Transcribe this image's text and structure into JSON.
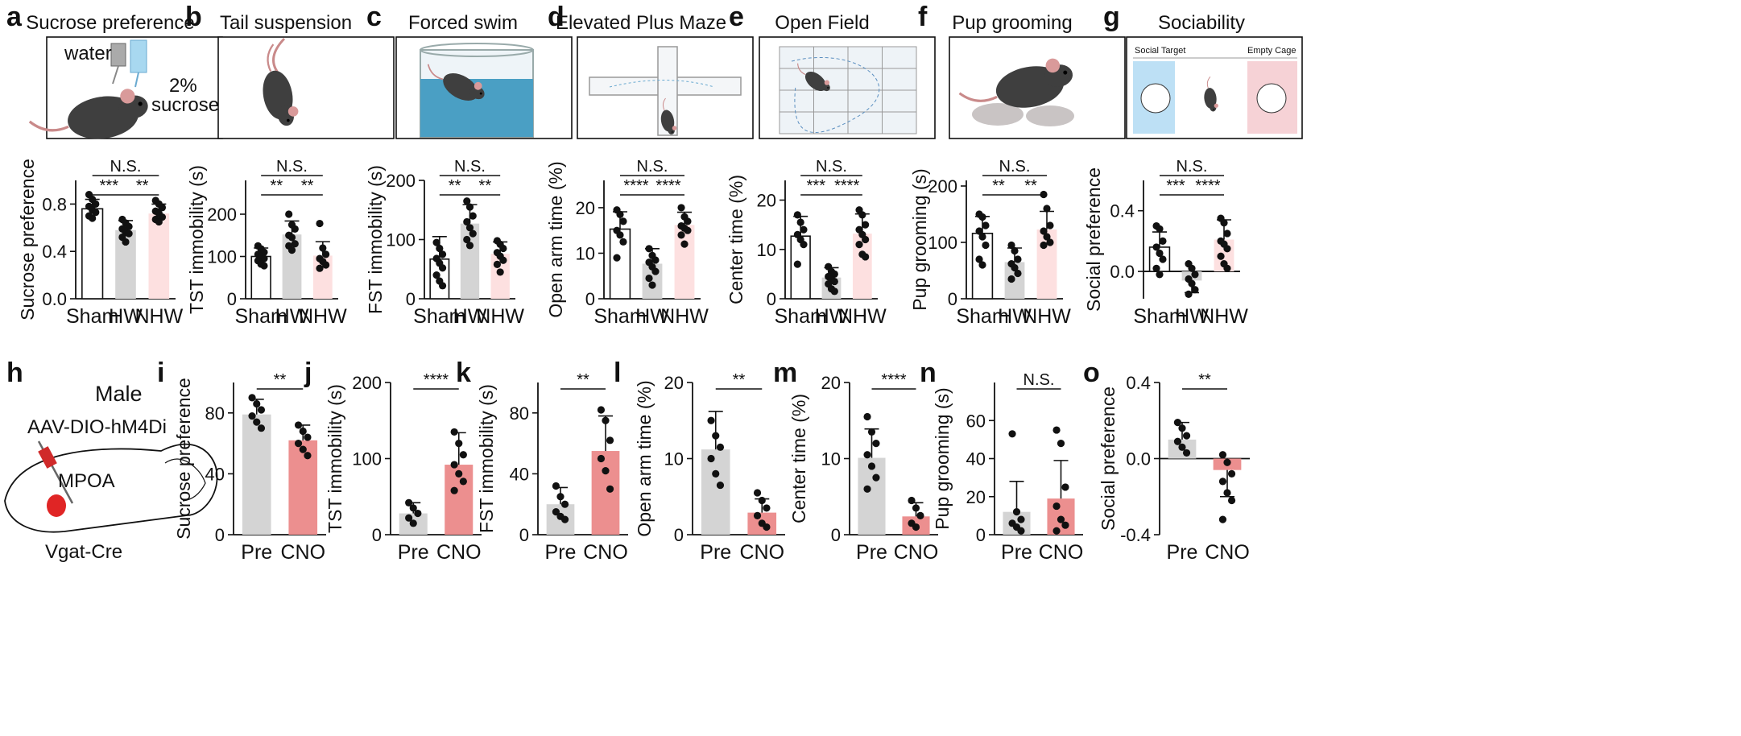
{
  "colors": {
    "sham": "#ffffff",
    "hw": "#d4d4d4",
    "nhw": "#fde0e0",
    "pre": "#d4d4d4",
    "cno": "#ec8f8f",
    "dot": "#111111",
    "mpoa": "#e02525",
    "virus": "#d02a2a",
    "water": "#a8d8f0"
  },
  "top_panels": [
    {
      "label": "a",
      "title": "Sucrose preference",
      "illustration": {
        "icon": "mouse-drinking-icon",
        "texts": [
          "water",
          "2%",
          "sucrose"
        ]
      }
    },
    {
      "label": "b",
      "title": "Tail suspension",
      "illustration": {
        "icon": "tail-suspension-mouse-icon",
        "texts": []
      }
    },
    {
      "label": "c",
      "title": "Forced swim",
      "illustration": {
        "icon": "forced-swim-cylinder-icon",
        "texts": []
      }
    },
    {
      "label": "d",
      "title": "Elevated Plus Maze",
      "illustration": {
        "icon": "plus-maze-icon",
        "texts": []
      }
    },
    {
      "label": "e",
      "title": "Open Field",
      "illustration": {
        "icon": "open-field-arena-icon",
        "texts": []
      }
    },
    {
      "label": "f",
      "title": "Pup grooming",
      "illustration": {
        "icon": "mouse-with-pups-icon",
        "texts": []
      }
    },
    {
      "label": "g",
      "title": "Sociability",
      "illustration": {
        "icon": "three-chamber-icon",
        "texts": [
          "Social Target",
          "Empty Cage"
        ]
      }
    }
  ],
  "panel_h": {
    "label": "h",
    "sex": "Male",
    "virus": "AAV-DIO-hM4Di",
    "region": "MPOA",
    "line": "Vgat-Cre",
    "icon": "brain-sagittal-icon"
  },
  "chart_data": [
    {
      "panel": "a",
      "type": "bar",
      "categories": [
        "Sham",
        "HW",
        "NHW"
      ],
      "values": [
        0.76,
        0.58,
        0.72
      ],
      "errors": [
        0.08,
        0.08,
        0.08
      ],
      "ylabel": "Sucrose preference",
      "ylim": [
        0,
        1.0
      ],
      "yticks": [
        "0.0",
        "0.4",
        "0.8"
      ],
      "ytick_values": [
        0,
        0.4,
        0.8
      ],
      "points": [
        [
          0.88,
          0.84,
          0.8,
          0.78,
          0.75,
          0.73,
          0.7,
          0.68
        ],
        [
          0.67,
          0.64,
          0.61,
          0.59,
          0.56,
          0.55,
          0.52,
          0.48
        ],
        [
          0.83,
          0.8,
          0.77,
          0.74,
          0.72,
          0.69,
          0.67,
          0.65
        ]
      ],
      "comparisons": [
        {
          "from": 0,
          "to": 2,
          "text": "N.S."
        },
        {
          "from": 0,
          "to": 1,
          "text": "***"
        },
        {
          "from": 1,
          "to": 2,
          "text": "**"
        }
      ]
    },
    {
      "panel": "b",
      "type": "bar",
      "categories": [
        "Sham",
        "HW",
        "NHW"
      ],
      "values": [
        100,
        152,
        102
      ],
      "errors": [
        20,
        32,
        33
      ],
      "ylabel": "TST immobility (s)",
      "ylim": [
        0,
        280
      ],
      "yticks": [
        "0",
        "100",
        "200"
      ],
      "ytick_values": [
        0,
        100,
        200
      ],
      "points": [
        [
          125,
          118,
          110,
          105,
          100,
          95,
          90,
          82,
          78
        ],
        [
          200,
          175,
          165,
          150,
          145,
          130,
          125,
          115
        ],
        [
          178,
          120,
          105,
          95,
          88,
          80,
          72
        ]
      ],
      "comparisons": [
        {
          "from": 0,
          "to": 2,
          "text": "N.S."
        },
        {
          "from": 0,
          "to": 1,
          "text": "**"
        },
        {
          "from": 1,
          "to": 2,
          "text": "**"
        }
      ]
    },
    {
      "panel": "c",
      "type": "bar",
      "categories": [
        "Sham",
        "HW",
        "NHW"
      ],
      "values": [
        67,
        127,
        76
      ],
      "errors": [
        38,
        32,
        20
      ],
      "ylabel": "FST immobility (s)",
      "ylim": [
        0,
        200
      ],
      "yticks": [
        "0",
        "100",
        "200"
      ],
      "ytick_values": [
        0,
        100,
        200
      ],
      "points": [
        [
          95,
          85,
          75,
          68,
          60,
          52,
          40,
          30,
          22
        ],
        [
          165,
          155,
          140,
          130,
          120,
          110,
          100,
          90
        ],
        [
          98,
          92,
          85,
          78,
          72,
          65,
          58,
          45
        ]
      ],
      "comparisons": [
        {
          "from": 0,
          "to": 2,
          "text": "N.S."
        },
        {
          "from": 0,
          "to": 1,
          "text": "**"
        },
        {
          "from": 1,
          "to": 2,
          "text": "**"
        }
      ]
    },
    {
      "panel": "d",
      "type": "bar",
      "categories": [
        "Sham",
        "HW",
        "NHW"
      ],
      "values": [
        15.3,
        7.7,
        16.2
      ],
      "errors": [
        3.8,
        3.3,
        2.8
      ],
      "ylabel": "Open arm time (%)",
      "ylim": [
        0,
        26
      ],
      "yticks": [
        "0",
        "10",
        "20"
      ],
      "ytick_values": [
        0,
        10,
        20
      ],
      "points": [
        [
          19.5,
          18.5,
          17.0,
          15.0,
          14.0,
          12.5,
          9.0
        ],
        [
          11.0,
          9.5,
          8.5,
          8.0,
          7.0,
          6.0,
          4.5,
          3.0
        ],
        [
          20.0,
          18.0,
          17.0,
          16.0,
          15.5,
          15.0,
          14.0,
          12.0
        ]
      ],
      "comparisons": [
        {
          "from": 0,
          "to": 2,
          "text": "N.S."
        },
        {
          "from": 0,
          "to": 1,
          "text": "****"
        },
        {
          "from": 1,
          "to": 2,
          "text": "****"
        }
      ]
    },
    {
      "panel": "e",
      "type": "bar",
      "categories": [
        "Sham",
        "HW",
        "NHW"
      ],
      "values": [
        12.7,
        4.3,
        13.2
      ],
      "errors": [
        4.0,
        2.0,
        4.0
      ],
      "ylabel": "Center time (%)",
      "ylim": [
        0,
        24
      ],
      "yticks": [
        "0",
        "10",
        "20"
      ],
      "ytick_values": [
        0,
        10,
        20
      ],
      "points": [
        [
          17.0,
          15.5,
          14.0,
          13.0,
          12.0,
          11.0,
          7.0
        ],
        [
          6.5,
          5.5,
          5.0,
          4.5,
          4.0,
          3.5,
          3.0,
          2.0,
          1.5
        ],
        [
          18.0,
          17.0,
          15.0,
          14.0,
          13.0,
          12.0,
          11.0,
          9.0,
          8.5
        ]
      ],
      "comparisons": [
        {
          "from": 0,
          "to": 2,
          "text": "N.S."
        },
        {
          "from": 0,
          "to": 1,
          "text": "***"
        },
        {
          "from": 1,
          "to": 2,
          "text": "****"
        }
      ]
    },
    {
      "panel": "f",
      "type": "bar",
      "categories": [
        "Sham",
        "HW",
        "NHW"
      ],
      "values": [
        116,
        65,
        123
      ],
      "errors": [
        30,
        25,
        32
      ],
      "ylabel": "Pup grooming (s)",
      "ylim": [
        0,
        210
      ],
      "yticks": [
        "0",
        "100",
        "200"
      ],
      "ytick_values": [
        0,
        100,
        200
      ],
      "points": [
        [
          150,
          145,
          130,
          120,
          110,
          95,
          70,
          60
        ],
        [
          95,
          85,
          70,
          62,
          55,
          45,
          35
        ],
        [
          185,
          160,
          130,
          120,
          110,
          100,
          95
        ]
      ],
      "comparisons": [
        {
          "from": 0,
          "to": 2,
          "text": "N.S."
        },
        {
          "from": 0,
          "to": 1,
          "text": "**"
        },
        {
          "from": 1,
          "to": 2,
          "text": "**"
        }
      ]
    },
    {
      "panel": "g",
      "type": "bar",
      "categories": [
        "Sham",
        "HW",
        "NHW"
      ],
      "values": [
        0.16,
        -0.06,
        0.21
      ],
      "errors": [
        0.1,
        0.08,
        0.13
      ],
      "ylabel": "Social preference",
      "ylim": [
        -0.18,
        0.6
      ],
      "yticks": [
        "0.0",
        "0.4"
      ],
      "ytick_values": [
        0,
        0.4
      ],
      "points": [
        [
          0.3,
          0.28,
          0.2,
          0.16,
          0.12,
          0.08,
          0.02,
          -0.02
        ],
        [
          0.05,
          0.02,
          -0.02,
          -0.05,
          -0.08,
          -0.12,
          -0.15
        ],
        [
          0.35,
          0.32,
          0.25,
          0.2,
          0.18,
          0.15,
          0.1,
          0.05,
          0.02
        ]
      ],
      "comparisons": [
        {
          "from": 0,
          "to": 2,
          "text": "N.S."
        },
        {
          "from": 0,
          "to": 1,
          "text": "***"
        },
        {
          "from": 1,
          "to": 2,
          "text": "****"
        }
      ]
    },
    {
      "panel": "i",
      "type": "bar",
      "categories": [
        "Pre",
        "CNO"
      ],
      "values": [
        79,
        62
      ],
      "errors": [
        10,
        10
      ],
      "ylabel": "Sucrose preference",
      "ylim": [
        0,
        100
      ],
      "yticks": [
        "0",
        "40",
        "80"
      ],
      "ytick_values": [
        0,
        40,
        80
      ],
      "points": [
        [
          90,
          86,
          82,
          78,
          74,
          70
        ],
        [
          72,
          68,
          64,
          60,
          56,
          52
        ]
      ],
      "comparisons": [
        {
          "from": 0,
          "to": 1,
          "text": "**"
        }
      ]
    },
    {
      "panel": "j",
      "type": "bar",
      "categories": [
        "Pre",
        "CNO"
      ],
      "values": [
        28,
        92
      ],
      "errors": [
        14,
        42
      ],
      "ylabel": "TST immobility (s)",
      "ylim": [
        0,
        200
      ],
      "yticks": [
        "0",
        "100",
        "200"
      ],
      "ytick_values": [
        0,
        100,
        200
      ],
      "points": [
        [
          42,
          35,
          28,
          22,
          15
        ],
        [
          135,
          120,
          105,
          92,
          80,
          70,
          58
        ]
      ],
      "comparisons": [
        {
          "from": 0,
          "to": 1,
          "text": "****"
        }
      ]
    },
    {
      "panel": "k",
      "type": "bar",
      "categories": [
        "Pre",
        "CNO"
      ],
      "values": [
        20,
        55
      ],
      "errors": [
        11,
        23
      ],
      "ylabel": "FST immobility (s)",
      "ylim": [
        0,
        100
      ],
      "yticks": [
        "0",
        "40",
        "80"
      ],
      "ytick_values": [
        0,
        40,
        80
      ],
      "points": [
        [
          32,
          25,
          20,
          15,
          12,
          10
        ],
        [
          82,
          75,
          62,
          50,
          42,
          30
        ]
      ],
      "comparisons": [
        {
          "from": 0,
          "to": 1,
          "text": "**"
        }
      ]
    },
    {
      "panel": "l",
      "type": "bar",
      "categories": [
        "Pre",
        "CNO"
      ],
      "values": [
        11.2,
        2.9
      ],
      "errors": [
        5.0,
        1.8
      ],
      "ylabel": "Open arm time (%)",
      "ylim": [
        0,
        20
      ],
      "yticks": [
        "0",
        "10",
        "20"
      ],
      "ytick_values": [
        0,
        10,
        20
      ],
      "points": [
        [
          15,
          13,
          11.5,
          10,
          8,
          6.5
        ],
        [
          5.5,
          4.5,
          3.5,
          2.5,
          1.5,
          1.0
        ]
      ],
      "comparisons": [
        {
          "from": 0,
          "to": 1,
          "text": "**"
        }
      ]
    },
    {
      "panel": "m",
      "type": "bar",
      "categories": [
        "Pre",
        "CNO"
      ],
      "values": [
        10.1,
        2.4
      ],
      "errors": [
        3.8,
        1.8
      ],
      "ylabel": "Center time (%)",
      "ylim": [
        0,
        20
      ],
      "yticks": [
        "0",
        "10",
        "20"
      ],
      "ytick_values": [
        0,
        10,
        20
      ],
      "points": [
        [
          15.5,
          13.5,
          12,
          10.5,
          9,
          7.5,
          6
        ],
        [
          4.5,
          3.5,
          2.5,
          1.5,
          1.0
        ]
      ],
      "comparisons": [
        {
          "from": 0,
          "to": 1,
          "text": "****"
        }
      ]
    },
    {
      "panel": "n",
      "type": "bar",
      "categories": [
        "Pre",
        "CNO"
      ],
      "values": [
        12,
        19
      ],
      "errors": [
        16,
        20
      ],
      "ylabel": "Pup grooming (s)",
      "ylim": [
        0,
        80
      ],
      "yticks": [
        "0",
        "20",
        "40",
        "60"
      ],
      "ytick_values": [
        0,
        20,
        40,
        60
      ],
      "points": [
        [
          53,
          12,
          8,
          6,
          4,
          2
        ],
        [
          55,
          48,
          25,
          15,
          8,
          5,
          2
        ]
      ],
      "comparisons": [
        {
          "from": 0,
          "to": 1,
          "text": "N.S."
        }
      ]
    },
    {
      "panel": "o",
      "type": "bar",
      "categories": [
        "Pre",
        "CNO"
      ],
      "values": [
        0.1,
        -0.06
      ],
      "errors": [
        0.09,
        0.14
      ],
      "ylabel": "Social preference",
      "ylim": [
        -0.4,
        0.4
      ],
      "yticks": [
        "-0.4",
        "0.0",
        "0.4"
      ],
      "ytick_values": [
        -0.4,
        0,
        0.4
      ],
      "points": [
        [
          0.19,
          0.16,
          0.12,
          0.09,
          0.06,
          0.03
        ],
        [
          0.02,
          -0.02,
          -0.08,
          -0.12,
          -0.18,
          -0.22,
          -0.32
        ]
      ],
      "comparisons": [
        {
          "from": 0,
          "to": 1,
          "text": "**"
        }
      ]
    }
  ]
}
